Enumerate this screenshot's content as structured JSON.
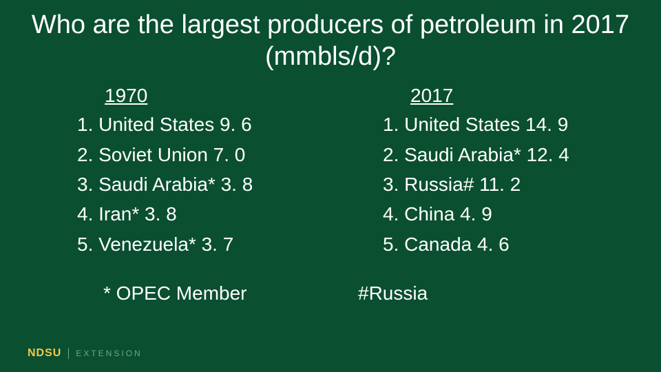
{
  "background_color": "#0a4f30",
  "text_color": "#ffffff",
  "title": "Who are the largest producers of petroleum in 2017 (mmbls/d)?",
  "title_fontsize": 38,
  "body_fontsize": 28,
  "left": {
    "year": "1970",
    "items": [
      "1. United States 9. 6",
      "2. Soviet Union 7. 0",
      "3. Saudi Arabia* 3. 8",
      "4. Iran* 3. 8",
      "5. Venezuela* 3. 7"
    ]
  },
  "right": {
    "year": "2017",
    "items": [
      "1. United States 14. 9",
      "2. Saudi Arabia* 12. 4",
      "3. Russia# 11. 2",
      "4. China 4. 9",
      "5. Canada 4. 6"
    ]
  },
  "footnote_left": "* OPEC Member",
  "footnote_right": "#Russia",
  "logo": {
    "mark": "NDSU",
    "ext": "EXTENSION",
    "mark_color": "#f2c94c",
    "ext_color": "#6aa98a"
  }
}
